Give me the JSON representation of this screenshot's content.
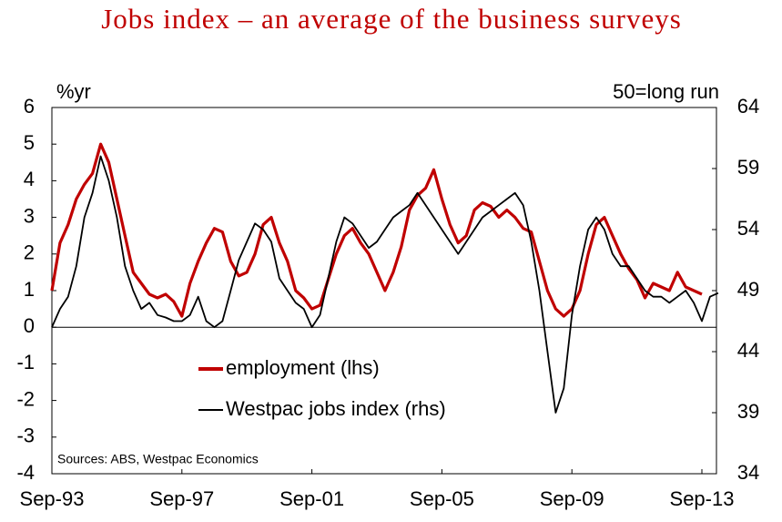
{
  "chart_data": {
    "type": "line",
    "title": "Jobs index – an average of the business surveys",
    "y_label": "%yr",
    "y2_label": "50=long run",
    "source": "Sources: ABS, Westpac Economics",
    "categories": [
      "Sep-93",
      null,
      null,
      null,
      null,
      null,
      null,
      null,
      null,
      null,
      null,
      null,
      null,
      null,
      null,
      null,
      "Sep-97",
      null,
      null,
      null,
      null,
      null,
      null,
      null,
      null,
      null,
      null,
      null,
      null,
      null,
      null,
      null,
      "Sep-01",
      null,
      null,
      null,
      null,
      null,
      null,
      null,
      null,
      null,
      null,
      null,
      null,
      null,
      null,
      null,
      "Sep-05",
      null,
      null,
      null,
      null,
      null,
      null,
      null,
      null,
      null,
      null,
      null,
      null,
      null,
      null,
      null,
      "Sep-09",
      null,
      null,
      null,
      null,
      null,
      null,
      null,
      null,
      null,
      null,
      null,
      null,
      null,
      null,
      null,
      "Sep-13",
      null,
      null
    ],
    "series": [
      {
        "name": "employment (lhs)",
        "color": "#c00000",
        "axis": "y",
        "values": [
          1.0,
          2.3,
          2.8,
          3.5,
          3.9,
          4.2,
          5.0,
          4.5,
          3.5,
          2.5,
          1.5,
          1.2,
          0.9,
          0.8,
          0.9,
          0.7,
          0.3,
          1.2,
          1.8,
          2.3,
          2.7,
          2.6,
          1.8,
          1.4,
          1.5,
          2.0,
          2.8,
          3.0,
          2.3,
          1.8,
          1.0,
          0.8,
          0.5,
          0.6,
          1.3,
          2.0,
          2.5,
          2.7,
          2.3,
          2.0,
          1.5,
          1.0,
          1.5,
          2.2,
          3.2,
          3.6,
          3.8,
          4.3,
          3.5,
          2.8,
          2.3,
          2.5,
          3.2,
          3.4,
          3.3,
          3.0,
          3.2,
          3.0,
          2.7,
          2.6,
          1.8,
          1.0,
          0.5,
          0.3,
          0.5,
          1.0,
          2.0,
          2.8,
          3.0,
          2.5,
          2.0,
          1.6,
          1.3,
          0.8,
          1.2,
          1.1,
          1.0,
          1.5,
          1.1,
          1.0,
          0.9,
          null,
          null
        ]
      },
      {
        "name": "Westpac jobs index (rhs)",
        "color": "#000000",
        "axis": "y2",
        "values": [
          46.0,
          47.5,
          48.5,
          51,
          55,
          57,
          60,
          58,
          55,
          51,
          49,
          47.5,
          48,
          47,
          46.8,
          46.5,
          46.5,
          47,
          48.5,
          46.5,
          46,
          46.5,
          49,
          51.5,
          53,
          54.5,
          54,
          53,
          50,
          49,
          48,
          47.5,
          46,
          47,
          50,
          53,
          55,
          54.5,
          53.5,
          52.5,
          53,
          54,
          55,
          55.5,
          56,
          57,
          56,
          55,
          54,
          53,
          52,
          53,
          54,
          55,
          55.5,
          56,
          56.5,
          57,
          56,
          53,
          49,
          44,
          39,
          41,
          47,
          51,
          54,
          55,
          54,
          52,
          51,
          51,
          50,
          49,
          48.5,
          48.5,
          48,
          48.5,
          49,
          48,
          46.5,
          48.5,
          48.8
        ]
      }
    ],
    "ylim": [
      -4,
      6
    ],
    "yticks": [
      -4,
      -3,
      -2,
      -1,
      0,
      1,
      2,
      3,
      4,
      5,
      6
    ],
    "y2lim": [
      34,
      64
    ],
    "y2ticks": [
      34,
      39,
      44,
      49,
      54,
      59,
      64
    ],
    "zero_line": 0
  }
}
